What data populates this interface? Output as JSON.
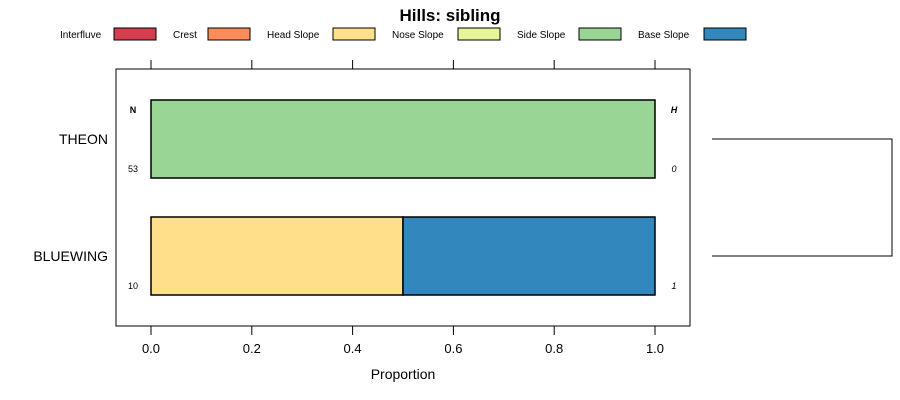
{
  "chart_data": {
    "type": "bar",
    "orientation": "horizontal",
    "stacked": true,
    "title": "Hills: sibling",
    "xlabel": "Proportion",
    "ylabel": "",
    "xlim": [
      0,
      1
    ],
    "x_ticks": [
      "0.0",
      "0.2",
      "0.4",
      "0.6",
      "0.8",
      "1.0"
    ],
    "legend_position": "top",
    "n_header": "N",
    "h_header": "H",
    "legend": [
      {
        "name": "Interfluve",
        "color": "#d53e4f"
      },
      {
        "name": "Crest",
        "color": "#fc8d59"
      },
      {
        "name": "Head Slope",
        "color": "#fee08b"
      },
      {
        "name": "Nose Slope",
        "color": "#e6f598"
      },
      {
        "name": "Side Slope",
        "color": "#99d594"
      },
      {
        "name": "Base Slope",
        "color": "#3288bd"
      }
    ],
    "categories": [
      "THEON",
      "BLUEWING"
    ],
    "n_values": [
      "53",
      "10"
    ],
    "h_values": [
      "0",
      "1"
    ],
    "series": [
      {
        "name": "Interfluve",
        "values": [
          0,
          0
        ]
      },
      {
        "name": "Crest",
        "values": [
          0,
          0
        ]
      },
      {
        "name": "Head Slope",
        "values": [
          0,
          0.5
        ]
      },
      {
        "name": "Nose Slope",
        "values": [
          0,
          0
        ]
      },
      {
        "name": "Side Slope",
        "values": [
          1.0,
          0
        ]
      },
      {
        "name": "Base Slope",
        "values": [
          0,
          0.5
        ]
      }
    ],
    "dendrogram": true
  }
}
